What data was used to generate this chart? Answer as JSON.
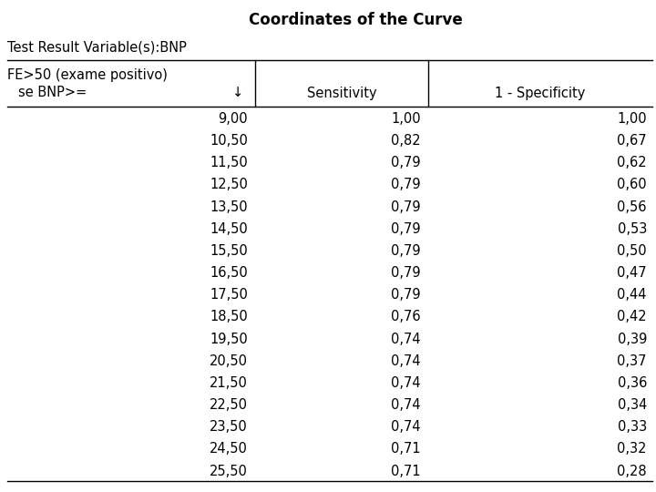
{
  "title": "Coordinates of the Curve",
  "subtitle": "Test Result Variable(s):BNP",
  "col1_header_line1": "FE>50 (exame positivo)",
  "col1_header_line2": "se BNP>=",
  "col1_arrow": "↓",
  "col2_header": "Sensitivity",
  "col3_header": "1 - Specificity",
  "rows": [
    [
      "9,00",
      "1,00",
      "1,00"
    ],
    [
      "10,50",
      "0,82",
      "0,67"
    ],
    [
      "11,50",
      "0,79",
      "0,62"
    ],
    [
      "12,50",
      "0,79",
      "0,60"
    ],
    [
      "13,50",
      "0,79",
      "0,56"
    ],
    [
      "14,50",
      "0,79",
      "0,53"
    ],
    [
      "15,50",
      "0,79",
      "0,50"
    ],
    [
      "16,50",
      "0,79",
      "0,47"
    ],
    [
      "17,50",
      "0,79",
      "0,44"
    ],
    [
      "18,50",
      "0,76",
      "0,42"
    ],
    [
      "19,50",
      "0,74",
      "0,39"
    ],
    [
      "20,50",
      "0,74",
      "0,37"
    ],
    [
      "21,50",
      "0,74",
      "0,36"
    ],
    [
      "22,50",
      "0,74",
      "0,34"
    ],
    [
      "23,50",
      "0,74",
      "0,33"
    ],
    [
      "24,50",
      "0,71",
      "0,32"
    ],
    [
      "25,50",
      "0,71",
      "0,28"
    ]
  ],
  "bg_color": "#ffffff",
  "text_color": "#000000",
  "title_fontsize": 12,
  "subtitle_fontsize": 10.5,
  "header_fontsize": 10.5,
  "data_fontsize": 10.5,
  "font_family": "DejaVu Sans"
}
